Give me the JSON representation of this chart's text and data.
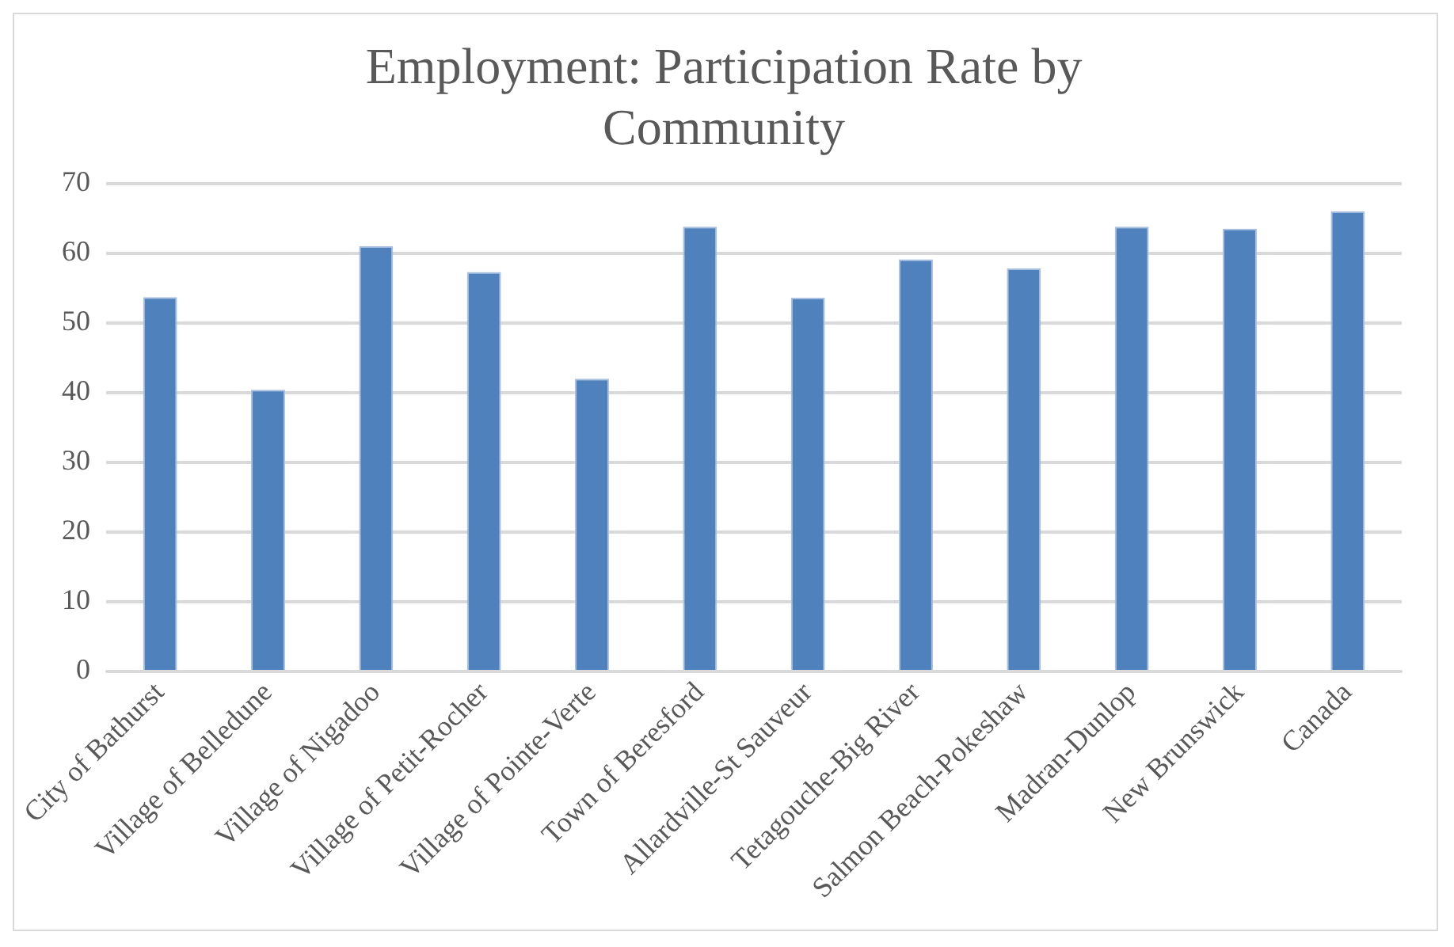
{
  "chart_data": {
    "type": "bar",
    "title": "Employment: Participation Rate by Community",
    "categories": [
      "City of Bathurst",
      "Village of Belledune",
      "Village of Nigadoo",
      "Village of Petit-Rocher",
      "Village of Pointe-Verte",
      "Town of Beresford",
      "Allardville-St Sauveur",
      "Tetagouche-Big River",
      "Salmon Beach-Pokeshaw",
      "Madran-Dunlop",
      "New Brunswick",
      "Canada"
    ],
    "values": [
      53.7,
      40.4,
      61.0,
      57.3,
      42.0,
      63.8,
      53.6,
      59.1,
      57.8,
      63.8,
      63.5,
      66.0
    ],
    "color": "#4f81bd",
    "ylim": [
      0,
      70
    ],
    "yticks": [
      0,
      10,
      20,
      30,
      40,
      50,
      60,
      70
    ],
    "grid": "y"
  }
}
